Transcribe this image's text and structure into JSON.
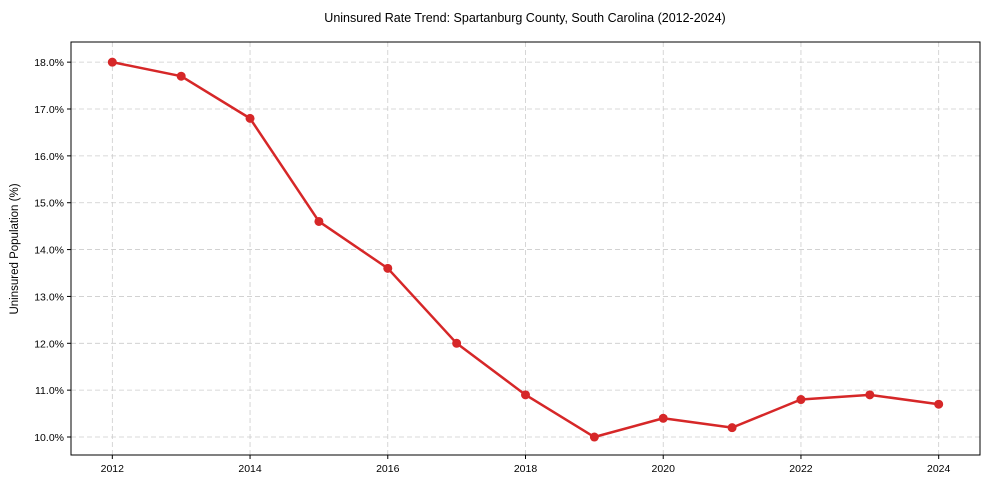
{
  "chart_data": {
    "type": "line",
    "title": "Uninsured Rate Trend: Spartanburg County, South Carolina (2012-2024)",
    "xlabel": "",
    "ylabel": "Uninsured Population (%)",
    "x": [
      2012,
      2013,
      2014,
      2015,
      2016,
      2017,
      2018,
      2019,
      2020,
      2021,
      2022,
      2023,
      2024
    ],
    "series": [
      {
        "name": "Uninsured Rate",
        "values": [
          18.0,
          17.7,
          16.8,
          14.6,
          13.6,
          12.0,
          10.9,
          10.0,
          10.4,
          10.2,
          10.8,
          10.9,
          10.7
        ],
        "color": "#d62728"
      }
    ],
    "xticks": [
      "2012",
      "2014",
      "2016",
      "2018",
      "2020",
      "2022",
      "2024"
    ],
    "yticks": [
      "10.0%",
      "11.0%",
      "12.0%",
      "13.0%",
      "14.0%",
      "15.0%",
      "16.0%",
      "17.0%",
      "18.0%"
    ],
    "xlim": [
      2011.4,
      2024.6
    ],
    "ylim": [
      9.616,
      18.43
    ],
    "grid": true,
    "legend": "none"
  }
}
